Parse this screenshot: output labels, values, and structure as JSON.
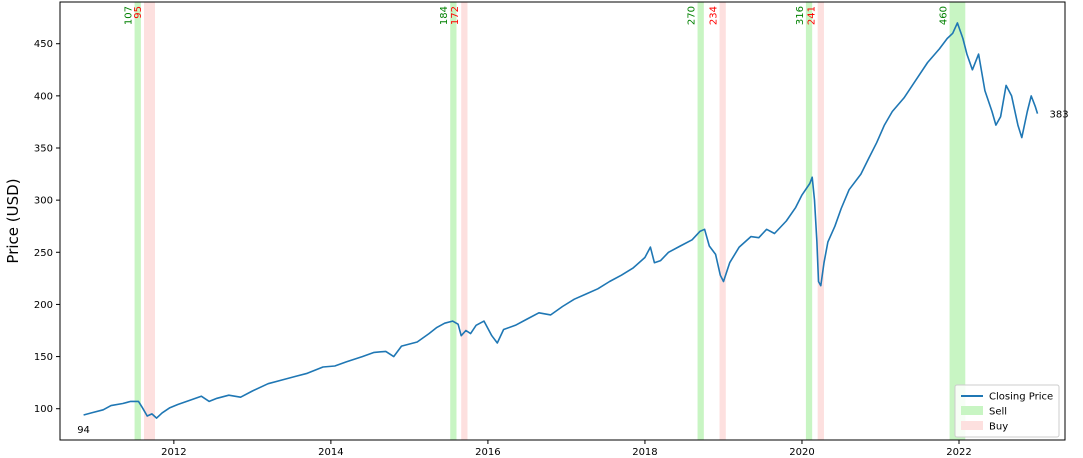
{
  "chart_data": {
    "type": "line",
    "title": "",
    "xlabel": "",
    "ylabel": "Price (USD)",
    "xlim": [
      2010.55,
      2023.35
    ],
    "ylim": [
      70,
      490
    ],
    "x_ticks": [
      2012,
      2014,
      2016,
      2018,
      2020,
      2022
    ],
    "x_tick_labels": [
      "2012",
      "2014",
      "2016",
      "2018",
      "2020",
      "2022"
    ],
    "y_ticks": [
      100,
      150,
      200,
      250,
      300,
      350,
      400,
      450
    ],
    "y_tick_labels": [
      "100",
      "150",
      "200",
      "250",
      "300",
      "350",
      "400",
      "450"
    ],
    "grid": false,
    "legend_position": "lower-right",
    "colors": {
      "line": "#1f77b4",
      "sell_fill": "#c8f5c3",
      "buy_fill": "#fde0df",
      "sell_text": "#008000",
      "buy_text": "#ff0000",
      "axes": "#000000"
    },
    "series": [
      {
        "name": "Closing Price",
        "points": [
          [
            2010.85,
            94
          ],
          [
            2010.95,
            96
          ],
          [
            2011.1,
            99
          ],
          [
            2011.2,
            103
          ],
          [
            2011.35,
            105
          ],
          [
            2011.45,
            107
          ],
          [
            2011.55,
            107
          ],
          [
            2011.6,
            101
          ],
          [
            2011.66,
            93
          ],
          [
            2011.72,
            95
          ],
          [
            2011.78,
            91
          ],
          [
            2011.85,
            96
          ],
          [
            2011.95,
            101
          ],
          [
            2012.05,
            104
          ],
          [
            2012.2,
            108
          ],
          [
            2012.35,
            112
          ],
          [
            2012.45,
            107
          ],
          [
            2012.55,
            110
          ],
          [
            2012.7,
            113
          ],
          [
            2012.85,
            111
          ],
          [
            2013.0,
            117
          ],
          [
            2013.2,
            124
          ],
          [
            2013.4,
            128
          ],
          [
            2013.55,
            131
          ],
          [
            2013.7,
            134
          ],
          [
            2013.9,
            140
          ],
          [
            2014.05,
            141
          ],
          [
            2014.2,
            145
          ],
          [
            2014.4,
            150
          ],
          [
            2014.55,
            154
          ],
          [
            2014.7,
            155
          ],
          [
            2014.8,
            150
          ],
          [
            2014.9,
            160
          ],
          [
            2015.1,
            164
          ],
          [
            2015.25,
            172
          ],
          [
            2015.35,
            178
          ],
          [
            2015.45,
            182
          ],
          [
            2015.55,
            184
          ],
          [
            2015.62,
            181
          ],
          [
            2015.66,
            170
          ],
          [
            2015.72,
            175
          ],
          [
            2015.78,
            172
          ],
          [
            2015.85,
            180
          ],
          [
            2015.95,
            184
          ],
          [
            2016.05,
            170
          ],
          [
            2016.12,
            163
          ],
          [
            2016.2,
            176
          ],
          [
            2016.35,
            180
          ],
          [
            2016.5,
            186
          ],
          [
            2016.65,
            192
          ],
          [
            2016.8,
            190
          ],
          [
            2016.95,
            198
          ],
          [
            2017.1,
            205
          ],
          [
            2017.25,
            210
          ],
          [
            2017.4,
            215
          ],
          [
            2017.55,
            222
          ],
          [
            2017.7,
            228
          ],
          [
            2017.85,
            235
          ],
          [
            2018.0,
            245
          ],
          [
            2018.07,
            255
          ],
          [
            2018.12,
            240
          ],
          [
            2018.2,
            242
          ],
          [
            2018.3,
            250
          ],
          [
            2018.45,
            256
          ],
          [
            2018.6,
            262
          ],
          [
            2018.7,
            270
          ],
          [
            2018.76,
            272
          ],
          [
            2018.82,
            256
          ],
          [
            2018.9,
            248
          ],
          [
            2018.96,
            228
          ],
          [
            2019.0,
            222
          ],
          [
            2019.08,
            240
          ],
          [
            2019.2,
            255
          ],
          [
            2019.35,
            265
          ],
          [
            2019.45,
            264
          ],
          [
            2019.55,
            272
          ],
          [
            2019.65,
            268
          ],
          [
            2019.8,
            280
          ],
          [
            2019.92,
            293
          ],
          [
            2020.0,
            305
          ],
          [
            2020.1,
            316
          ],
          [
            2020.13,
            322
          ],
          [
            2020.16,
            300
          ],
          [
            2020.19,
            260
          ],
          [
            2020.21,
            222
          ],
          [
            2020.24,
            218
          ],
          [
            2020.28,
            240
          ],
          [
            2020.33,
            260
          ],
          [
            2020.42,
            275
          ],
          [
            2020.5,
            292
          ],
          [
            2020.6,
            310
          ],
          [
            2020.75,
            325
          ],
          [
            2020.85,
            340
          ],
          [
            2020.95,
            355
          ],
          [
            2021.05,
            372
          ],
          [
            2021.15,
            385
          ],
          [
            2021.3,
            398
          ],
          [
            2021.45,
            415
          ],
          [
            2021.6,
            432
          ],
          [
            2021.75,
            445
          ],
          [
            2021.85,
            455
          ],
          [
            2021.92,
            460
          ],
          [
            2021.98,
            470
          ],
          [
            2022.05,
            455
          ],
          [
            2022.1,
            440
          ],
          [
            2022.17,
            425
          ],
          [
            2022.25,
            440
          ],
          [
            2022.33,
            405
          ],
          [
            2022.42,
            385
          ],
          [
            2022.47,
            372
          ],
          [
            2022.53,
            380
          ],
          [
            2022.6,
            410
          ],
          [
            2022.67,
            400
          ],
          [
            2022.75,
            372
          ],
          [
            2022.8,
            360
          ],
          [
            2022.87,
            385
          ],
          [
            2022.92,
            400
          ],
          [
            2022.97,
            390
          ],
          [
            2023.0,
            383
          ]
        ]
      }
    ],
    "sell_windows": [
      {
        "x0": 2011.5,
        "x1": 2011.58,
        "label": "107"
      },
      {
        "x0": 2015.52,
        "x1": 2015.6,
        "label": "184"
      },
      {
        "x0": 2018.67,
        "x1": 2018.75,
        "label": "270"
      },
      {
        "x0": 2020.05,
        "x1": 2020.13,
        "label": "316"
      },
      {
        "x0": 2021.88,
        "x1": 2022.08,
        "label": "460"
      }
    ],
    "buy_windows": [
      {
        "x0": 2011.62,
        "x1": 2011.76,
        "label": "95"
      },
      {
        "x0": 2015.66,
        "x1": 2015.74,
        "label": "172"
      },
      {
        "x0": 2018.95,
        "x1": 2019.03,
        "label": "234"
      },
      {
        "x0": 2020.2,
        "x1": 2020.28,
        "label": "241"
      }
    ],
    "annotations": [
      {
        "text": "94",
        "x": 2010.85,
        "y": 94
      },
      {
        "text": "383",
        "x": 2023.0,
        "y": 383
      }
    ],
    "legend": {
      "line_label": "Closing Price",
      "sell_label": "Sell",
      "buy_label": "Buy"
    }
  }
}
